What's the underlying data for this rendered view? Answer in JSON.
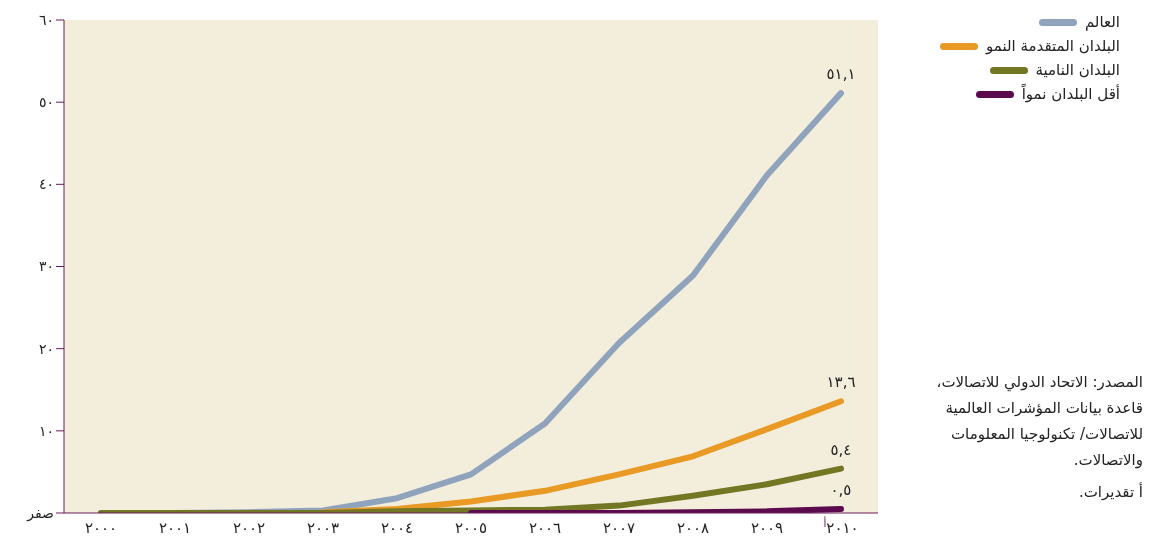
{
  "chart_data": {
    "type": "line",
    "categories": [
      "٢٠٠٠",
      "٢٠٠١",
      "٢٠٠٢",
      "٢٠٠٣",
      "٢٠٠٤",
      "٢٠٠٥",
      "٢٠٠٦",
      "٢٠٠٧",
      "٢٠٠٨",
      "٢٠٠٩",
      "٢٠١٠$^{أ}$"
    ],
    "series": [
      {
        "name": "العالم",
        "color": "#8fa3bd",
        "values": [
          0,
          0,
          0.1,
          0.3,
          1.8,
          4.7,
          10.9,
          20.7,
          28.9,
          41.1,
          51.1
        ],
        "value_labels": [
          null,
          null,
          null,
          null,
          null,
          null,
          null,
          null,
          null,
          null,
          "٥١,١"
        ]
      },
      {
        "name": "البلدان المتقدمة النمو",
        "color": "#e89a24",
        "values": [
          null,
          null,
          null,
          0.1,
          0.5,
          1.4,
          2.7,
          4.7,
          6.9,
          10.2,
          13.6
        ],
        "value_labels": [
          null,
          null,
          null,
          null,
          null,
          null,
          null,
          null,
          null,
          null,
          "١٣,٦"
        ]
      },
      {
        "name": "البلدان النامية",
        "color": "#737622",
        "values": [
          0,
          0,
          0,
          0,
          0.2,
          0.3,
          0.4,
          0.9,
          2.1,
          3.5,
          5.4
        ],
        "value_labels": [
          null,
          null,
          null,
          null,
          null,
          null,
          null,
          null,
          null,
          null,
          "٥,٤"
        ]
      },
      {
        "name": "أقل البلدان نمواً",
        "color": "#5c0a4e",
        "values": [
          null,
          null,
          null,
          null,
          null,
          0,
          0,
          0,
          0.1,
          0.2,
          0.5
        ],
        "value_labels": [
          null,
          null,
          null,
          null,
          null,
          null,
          null,
          null,
          null,
          null,
          "٠,٥"
        ]
      }
    ],
    "ylim": [
      0,
      60
    ],
    "yticks": [
      {
        "value": 0,
        "label": "صفر"
      },
      {
        "value": 10,
        "label": "١٠"
      },
      {
        "value": 20,
        "label": "٢٠"
      },
      {
        "value": 30,
        "label": "٣٠"
      },
      {
        "value": 40,
        "label": "٤٠"
      },
      {
        "value": 50,
        "label": "٥٠"
      },
      {
        "value": 60,
        "label": "٦٠"
      }
    ],
    "grid": false,
    "legend": "right",
    "marker": "none",
    "line_style": "solid",
    "annotations": [
      "المصدر: الاتحاد الدولي للاتصالات، قاعدة بيانات المؤشرات العالمية للاتصالات/ تكنولوجيا المعلومات والاتصالات.",
      "أ تقديرات."
    ]
  }
}
